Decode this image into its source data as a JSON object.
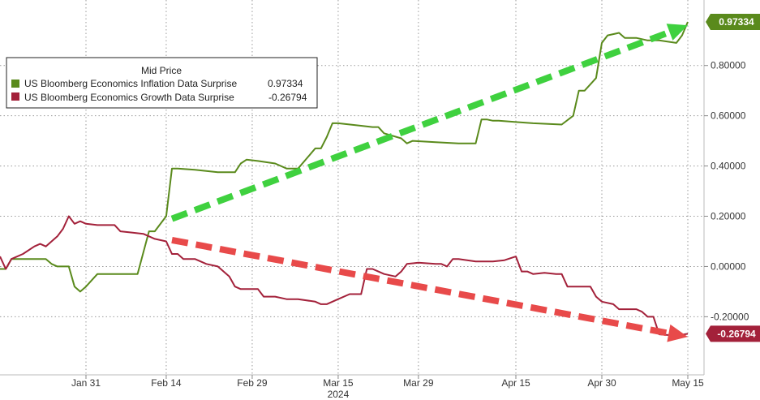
{
  "chart_data": {
    "type": "line",
    "x_ticks": [
      "Jan 31",
      "Feb 14",
      "Feb 29",
      "Mar 15",
      "Mar 29",
      "Apr 15",
      "Apr 30",
      "May 15"
    ],
    "x_year_label": "2024",
    "y_ticks": [
      "0.80000",
      "0.60000",
      "0.40000",
      "0.20000",
      "0.00000",
      "-0.20000"
    ],
    "ylim": [
      -0.42,
      1.03
    ],
    "grid": true,
    "legend": {
      "title": "Mid Price",
      "position": "top-left",
      "entries": [
        {
          "label": "US Bloomberg Economics Inflation Data Surprise",
          "value": "0.97334",
          "color": "#5a8a1c"
        },
        {
          "label": "US Bloomberg Economics Growth Data Surprise",
          "value": "-0.26794",
          "color": "#a3213a"
        }
      ]
    },
    "series": [
      {
        "name": "US Bloomberg Economics Inflation Data Surprise",
        "color": "#5a8a1c",
        "last_value_label": "0.97334",
        "points": [
          [
            "2024-01-16",
            -0.01
          ],
          [
            "2024-01-17",
            -0.01
          ],
          [
            "2024-01-18",
            0.03
          ],
          [
            "2024-01-19",
            0.03
          ],
          [
            "2024-01-22",
            0.03
          ],
          [
            "2024-01-23",
            0.03
          ],
          [
            "2024-01-24",
            0.03
          ],
          [
            "2024-01-25",
            0.01
          ],
          [
            "2024-01-26",
            0.0
          ],
          [
            "2024-01-28",
            0.0
          ],
          [
            "2024-01-29",
            -0.08
          ],
          [
            "2024-01-30",
            -0.1
          ],
          [
            "2024-01-31",
            -0.08
          ],
          [
            "2024-02-02",
            -0.03
          ],
          [
            "2024-02-05",
            -0.03
          ],
          [
            "2024-02-07",
            -0.03
          ],
          [
            "2024-02-09",
            -0.03
          ],
          [
            "2024-02-11",
            0.14
          ],
          [
            "2024-02-12",
            0.14
          ],
          [
            "2024-02-14",
            0.2
          ],
          [
            "2024-02-15",
            0.39
          ],
          [
            "2024-02-16",
            0.39
          ],
          [
            "2024-02-19",
            0.385
          ],
          [
            "2024-02-21",
            0.38
          ],
          [
            "2024-02-23",
            0.375
          ],
          [
            "2024-02-26",
            0.375
          ],
          [
            "2024-02-27",
            0.41
          ],
          [
            "2024-02-28",
            0.425
          ],
          [
            "2024-03-01",
            0.42
          ],
          [
            "2024-03-04",
            0.41
          ],
          [
            "2024-03-06",
            0.39
          ],
          [
            "2024-03-08",
            0.39
          ],
          [
            "2024-03-11",
            0.47
          ],
          [
            "2024-03-12",
            0.47
          ],
          [
            "2024-03-13",
            0.515
          ],
          [
            "2024-03-14",
            0.57
          ],
          [
            "2024-03-15",
            0.57
          ],
          [
            "2024-03-19",
            0.56
          ],
          [
            "2024-03-21",
            0.555
          ],
          [
            "2024-03-22",
            0.555
          ],
          [
            "2024-03-23",
            0.53
          ],
          [
            "2024-03-26",
            0.51
          ],
          [
            "2024-03-27",
            0.49
          ],
          [
            "2024-03-28",
            0.5
          ],
          [
            "2024-04-01",
            0.495
          ],
          [
            "2024-04-05",
            0.49
          ],
          [
            "2024-04-08",
            0.49
          ],
          [
            "2024-04-09",
            0.585
          ],
          [
            "2024-04-10",
            0.585
          ],
          [
            "2024-04-11",
            0.58
          ],
          [
            "2024-04-12",
            0.58
          ],
          [
            "2024-04-15",
            0.575
          ],
          [
            "2024-04-18",
            0.57
          ],
          [
            "2024-04-23",
            0.565
          ],
          [
            "2024-04-25",
            0.6
          ],
          [
            "2024-04-26",
            0.7
          ],
          [
            "2024-04-27",
            0.7
          ],
          [
            "2024-04-29",
            0.75
          ],
          [
            "2024-04-30",
            0.89
          ],
          [
            "2024-05-01",
            0.92
          ],
          [
            "2024-05-03",
            0.93
          ],
          [
            "2024-05-04",
            0.91
          ],
          [
            "2024-05-06",
            0.91
          ],
          [
            "2024-05-08",
            0.9
          ],
          [
            "2024-05-10",
            0.9
          ],
          [
            "2024-05-13",
            0.89
          ],
          [
            "2024-05-14",
            0.92
          ],
          [
            "2024-05-15",
            0.97334
          ]
        ]
      },
      {
        "name": "US Bloomberg Economics Growth Data Surprise",
        "color": "#a3213a",
        "last_value_label": "-0.26794",
        "points": [
          [
            "2024-01-16",
            0.04
          ],
          [
            "2024-01-17",
            -0.01
          ],
          [
            "2024-01-18",
            0.03
          ],
          [
            "2024-01-20",
            0.05
          ],
          [
            "2024-01-22",
            0.08
          ],
          [
            "2024-01-23",
            0.09
          ],
          [
            "2024-01-24",
            0.08
          ],
          [
            "2024-01-26",
            0.12
          ],
          [
            "2024-01-27",
            0.15
          ],
          [
            "2024-01-28",
            0.2
          ],
          [
            "2024-01-29",
            0.17
          ],
          [
            "2024-01-30",
            0.18
          ],
          [
            "2024-01-31",
            0.17
          ],
          [
            "2024-02-02",
            0.165
          ],
          [
            "2024-02-05",
            0.165
          ],
          [
            "2024-02-06",
            0.14
          ],
          [
            "2024-02-08",
            0.135
          ],
          [
            "2024-02-10",
            0.13
          ],
          [
            "2024-02-12",
            0.11
          ],
          [
            "2024-02-14",
            0.1
          ],
          [
            "2024-02-15",
            0.05
          ],
          [
            "2024-02-16",
            0.05
          ],
          [
            "2024-02-17",
            0.03
          ],
          [
            "2024-02-19",
            0.03
          ],
          [
            "2024-02-21",
            0.01
          ],
          [
            "2024-02-23",
            0.0
          ],
          [
            "2024-02-25",
            -0.04
          ],
          [
            "2024-02-26",
            -0.08
          ],
          [
            "2024-02-27",
            -0.09
          ],
          [
            "2024-03-01",
            -0.09
          ],
          [
            "2024-03-02",
            -0.12
          ],
          [
            "2024-03-04",
            -0.12
          ],
          [
            "2024-03-06",
            -0.13
          ],
          [
            "2024-03-08",
            -0.13
          ],
          [
            "2024-03-11",
            -0.14
          ],
          [
            "2024-03-12",
            -0.15
          ],
          [
            "2024-03-13",
            -0.15
          ],
          [
            "2024-03-15",
            -0.13
          ],
          [
            "2024-03-17",
            -0.11
          ],
          [
            "2024-03-19",
            -0.11
          ],
          [
            "2024-03-20",
            -0.01
          ],
          [
            "2024-03-21",
            -0.01
          ],
          [
            "2024-03-22",
            -0.02
          ],
          [
            "2024-03-23",
            -0.03
          ],
          [
            "2024-03-25",
            -0.04
          ],
          [
            "2024-03-26",
            -0.02
          ],
          [
            "2024-03-27",
            0.01
          ],
          [
            "2024-03-29",
            0.015
          ],
          [
            "2024-04-01",
            0.01
          ],
          [
            "2024-04-02",
            0.01
          ],
          [
            "2024-04-03",
            0.0
          ],
          [
            "2024-04-04",
            0.03
          ],
          [
            "2024-04-05",
            0.03
          ],
          [
            "2024-04-08",
            0.02
          ],
          [
            "2024-04-11",
            0.02
          ],
          [
            "2024-04-13",
            0.025
          ],
          [
            "2024-04-15",
            0.04
          ],
          [
            "2024-04-16",
            -0.02
          ],
          [
            "2024-04-17",
            -0.02
          ],
          [
            "2024-04-18",
            -0.03
          ],
          [
            "2024-04-20",
            -0.025
          ],
          [
            "2024-04-22",
            -0.03
          ],
          [
            "2024-04-23",
            -0.03
          ],
          [
            "2024-04-24",
            -0.08
          ],
          [
            "2024-04-26",
            -0.08
          ],
          [
            "2024-04-28",
            -0.08
          ],
          [
            "2024-04-29",
            -0.12
          ],
          [
            "2024-04-30",
            -0.14
          ],
          [
            "2024-05-02",
            -0.15
          ],
          [
            "2024-05-03",
            -0.17
          ],
          [
            "2024-05-06",
            -0.17
          ],
          [
            "2024-05-07",
            -0.18
          ],
          [
            "2024-05-08",
            -0.2
          ],
          [
            "2024-05-09",
            -0.2
          ],
          [
            "2024-05-10",
            -0.27
          ],
          [
            "2024-05-13",
            -0.275
          ],
          [
            "2024-05-15",
            -0.26794
          ]
        ]
      }
    ],
    "annotations": [
      {
        "type": "arrow",
        "style": "dashed",
        "color": "#3fd13f",
        "from": [
          "2024-02-15",
          0.19
        ],
        "to": [
          "2024-05-15",
          0.96
        ]
      },
      {
        "type": "arrow",
        "style": "dashed",
        "color": "#e84a4a",
        "from": [
          "2024-02-15",
          0.105
        ],
        "to": [
          "2024-05-15",
          -0.28
        ]
      }
    ]
  }
}
